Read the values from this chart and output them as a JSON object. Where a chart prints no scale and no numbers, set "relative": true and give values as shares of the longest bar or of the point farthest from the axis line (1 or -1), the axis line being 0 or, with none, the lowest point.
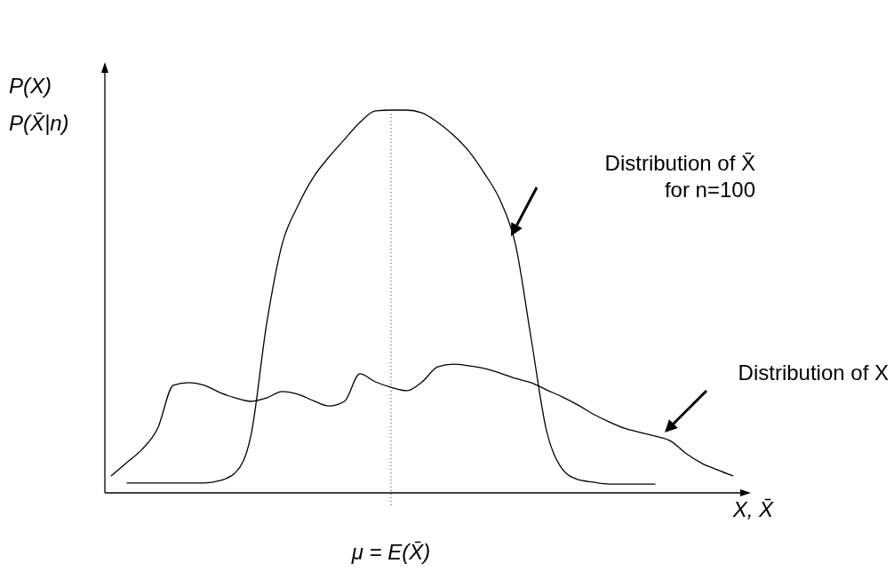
{
  "chart_data": {
    "type": "line",
    "relative": true,
    "xlabel": "X, X̄",
    "ylabel": "P(X)\nP(X̄|n)",
    "categories": [
      null,
      null,
      null,
      null,
      null,
      null,
      null,
      null,
      null,
      null,
      null,
      null,
      null,
      null,
      null,
      null,
      null,
      null,
      null,
      null,
      null,
      null,
      null,
      null,
      null,
      null,
      null,
      null,
      null,
      null,
      null,
      null,
      null,
      null,
      null,
      null,
      null,
      null,
      null,
      null,
      null
    ],
    "series": [
      {
        "color": "#000000",
        "values": [
          null,
          0.026,
          0.026,
          0.026,
          0.026,
          0.026,
          0.026,
          0.032,
          0.053,
          0.151,
          0.441,
          0.65,
          0.749,
          0.824,
          0.877,
          0.923,
          0.968,
          0.998,
          1,
          1,
          0.993,
          0.968,
          0.935,
          0.893,
          0.835,
          0.766,
          0.65,
          0.406,
          0.162,
          0.063,
          0.035,
          0.028,
          0.023,
          0.023,
          0.023,
          0.023,
          null,
          null,
          null,
          null,
          null
        ]
      },
      {
        "color": "#000000",
        "values": [
          0.044,
          0.079,
          0.114,
          0.169,
          0.281,
          0.288,
          0.281,
          0.262,
          0.248,
          0.239,
          0.248,
          0.265,
          0.258,
          0.241,
          0.227,
          0.239,
          0.311,
          0.29,
          0.276,
          0.267,
          0.29,
          0.329,
          0.336,
          0.332,
          0.325,
          0.313,
          0.299,
          0.288,
          0.269,
          0.251,
          0.23,
          0.206,
          0.186,
          0.169,
          0.158,
          0.148,
          0.135,
          0.102,
          0.077,
          0.06,
          0.044
        ]
      }
    ],
    "annotations": [
      "μ = E(X̄)",
      "Distribution of X̄ for n=100",
      "Distribution of X"
    ],
    "marker": "none",
    "line_style": "solid"
  }
}
